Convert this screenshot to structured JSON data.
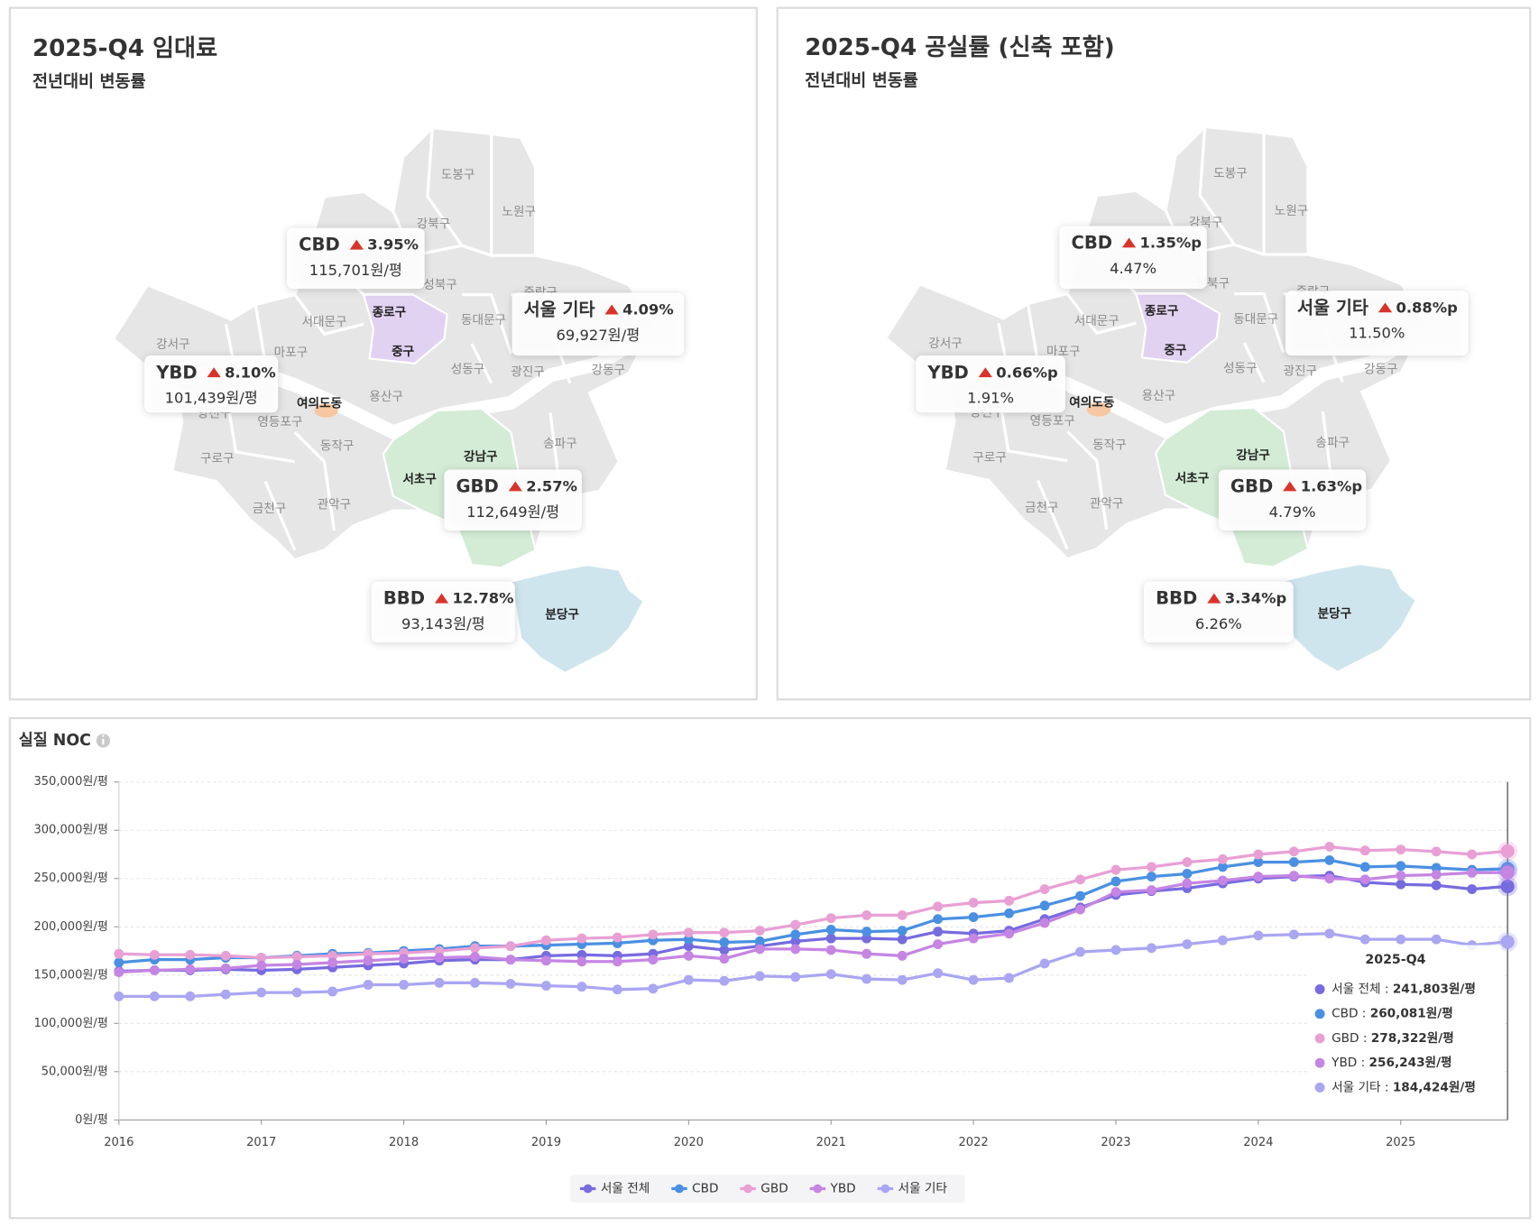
{
  "panels": [
    {
      "title": "2025-Q4 임대료",
      "subtitle": "전년대비 변동률",
      "callouts": [
        {
          "name": "CBD",
          "color": "#5aaed6",
          "change": "3.95%",
          "value": "115,701원/평"
        },
        {
          "name": "서울 기타",
          "color": "#8a8a8a",
          "change": "4.09%",
          "value": "69,927원/평"
        },
        {
          "name": "YBD",
          "color": "#4b5bc4",
          "change": "8.10%",
          "value": "101,439원/평"
        },
        {
          "name": "GBD",
          "color": "#2c6aa0",
          "change": "2.57%",
          "value": "112,649원/평"
        },
        {
          "name": "BBD",
          "color": "#3a9aa6",
          "change": "12.78%",
          "value": "93,143원/평"
        }
      ]
    },
    {
      "title": "2025-Q4 공실률 (신축 포함)",
      "subtitle": "전년대비 변동률",
      "callouts": [
        {
          "name": "CBD",
          "color": "#5aaed6",
          "change": "1.35%p",
          "value": "4.47%"
        },
        {
          "name": "서울 기타",
          "color": "#8a8a8a",
          "change": "0.88%p",
          "value": "11.50%"
        },
        {
          "name": "YBD",
          "color": "#4b5bc4",
          "change": "0.66%p",
          "value": "1.91%"
        },
        {
          "name": "GBD",
          "color": "#2c6aa0",
          "change": "1.63%p",
          "value": "4.79%"
        },
        {
          "name": "BBD",
          "color": "#3a9aa6",
          "change": "3.34%p",
          "value": "6.26%"
        }
      ]
    }
  ],
  "map": {
    "districts": [
      "도봉구",
      "노원구",
      "강북구",
      "성북구",
      "중랑구",
      "종로구",
      "서대문구",
      "동대문구",
      "강서구",
      "마포구",
      "중구",
      "성동구",
      "광진구",
      "강동구",
      "용산구",
      "여의도동",
      "양천구",
      "영등포구",
      "동작구",
      "송파구",
      "강남구",
      "구로구",
      "서초구",
      "관악구",
      "금천구",
      "분당구"
    ]
  },
  "chart_data": {
    "type": "line",
    "title": "실질 NOC",
    "x": [
      2016,
      2016.25,
      2016.5,
      2016.75,
      2017,
      2017.25,
      2017.5,
      2017.75,
      2018,
      2018.25,
      2018.5,
      2018.75,
      2019,
      2019.25,
      2019.5,
      2019.75,
      2020,
      2020.25,
      2020.5,
      2020.75,
      2021,
      2021.25,
      2021.5,
      2021.75,
      2022,
      2022.25,
      2022.5,
      2022.75,
      2023,
      2023.25,
      2023.5,
      2023.75,
      2024,
      2024.25,
      2024.5,
      2024.75,
      2025,
      2025.25,
      2025.5,
      2025.75
    ],
    "xlim": [
      2016,
      2025.75
    ],
    "xticks": [
      2016,
      2017,
      2018,
      2019,
      2020,
      2021,
      2022,
      2023,
      2024,
      2025
    ],
    "ylim": [
      0,
      350000
    ],
    "yticks": [
      {
        "value": 0,
        "label": "0원/평"
      },
      {
        "value": 50000,
        "label": "50,000원/평"
      },
      {
        "value": 100000,
        "label": "100,000원/평"
      },
      {
        "value": 150000,
        "label": "150,000원/평"
      },
      {
        "value": 200000,
        "label": "200,000원/평"
      },
      {
        "value": 250000,
        "label": "250,000원/평"
      },
      {
        "value": 300000,
        "label": "300,000원/평"
      },
      {
        "value": 350000,
        "label": "350,000원/평"
      }
    ],
    "grid": true,
    "legend": "bottom",
    "series": [
      {
        "name": "서울 전체",
        "color": "#776be0",
        "values": [
          154000,
          155000,
          155000,
          156000,
          155000,
          156000,
          158000,
          160000,
          162000,
          165000,
          166000,
          166000,
          170000,
          171000,
          170000,
          172000,
          180000,
          176000,
          180000,
          185000,
          188000,
          188000,
          187000,
          195000,
          193000,
          196000,
          208000,
          220000,
          233000,
          237000,
          240000,
          245000,
          250000,
          252000,
          253000,
          246000,
          244000,
          243000,
          239000,
          241803
        ]
      },
      {
        "name": "CBD",
        "color": "#4a90e2",
        "values": [
          163000,
          166000,
          166000,
          168000,
          168000,
          170000,
          172000,
          173000,
          175000,
          177000,
          180000,
          180000,
          181000,
          182000,
          183000,
          186000,
          187000,
          184000,
          185000,
          192000,
          197000,
          195000,
          196000,
          208000,
          210000,
          214000,
          222000,
          232000,
          247000,
          252000,
          255000,
          262000,
          267000,
          267000,
          269000,
          262000,
          263000,
          261000,
          259000,
          260081
        ]
      },
      {
        "name": "GBD",
        "color": "#e8a0d4",
        "values": [
          172000,
          171000,
          171000,
          170000,
          168000,
          169000,
          170000,
          172000,
          173000,
          175000,
          178000,
          180000,
          186000,
          188000,
          189000,
          192000,
          194000,
          194000,
          196000,
          202000,
          209000,
          212000,
          212000,
          221000,
          225000,
          227000,
          239000,
          249000,
          259000,
          262000,
          267000,
          270000,
          275000,
          278000,
          283000,
          279000,
          280000,
          278000,
          275000,
          278322
        ]
      },
      {
        "name": "YBD",
        "color": "#c585e3",
        "values": [
          153000,
          155000,
          156000,
          157000,
          160000,
          161000,
          163000,
          165000,
          167000,
          168000,
          169000,
          166000,
          165000,
          164000,
          164000,
          166000,
          170000,
          167000,
          177000,
          177000,
          176000,
          172000,
          170000,
          182000,
          188000,
          193000,
          204000,
          218000,
          236000,
          238000,
          245000,
          248000,
          252000,
          253000,
          250000,
          249000,
          253000,
          254000,
          256000,
          256243
        ]
      },
      {
        "name": "서울 기타",
        "color": "#aaa6f2",
        "values": [
          128000,
          128000,
          128000,
          130000,
          132000,
          132000,
          133000,
          140000,
          140000,
          142000,
          142000,
          141000,
          139000,
          138000,
          135000,
          136000,
          145000,
          144000,
          149000,
          148000,
          151000,
          146000,
          145000,
          152000,
          145000,
          147000,
          162000,
          174000,
          176000,
          178000,
          182000,
          186000,
          191000,
          192000,
          193000,
          187000,
          187000,
          187000,
          181000,
          184424
        ]
      }
    ],
    "tooltip": {
      "title": "2025-Q4",
      "items": [
        {
          "name": "서울 전체 :",
          "value": "241,803원/평"
        },
        {
          "name": "CBD :",
          "value": "260,081원/평"
        },
        {
          "name": "GBD :",
          "value": "278,322원/평"
        },
        {
          "name": "YBD :",
          "value": "256,243원/평"
        },
        {
          "name": "서울 기타 :",
          "value": "184,424원/평"
        }
      ]
    }
  }
}
